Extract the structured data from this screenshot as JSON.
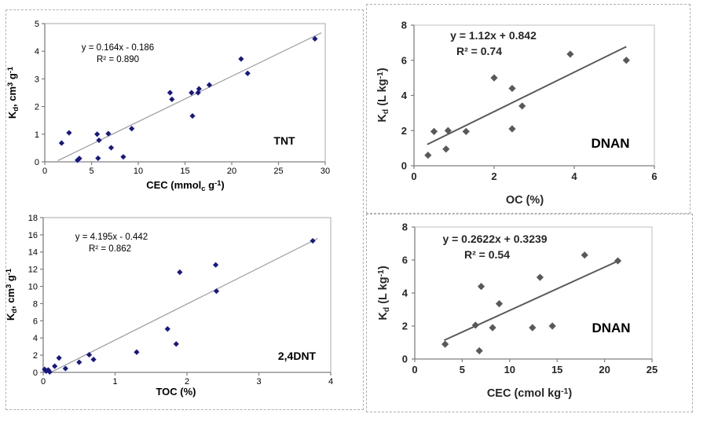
{
  "figure": {
    "background": "#ffffff",
    "panel_border_color": "#b0b0b0"
  },
  "chart_data": [
    {
      "id": "tnt_cec",
      "type": "scatter",
      "compound_label": "TNT",
      "equation": "y = 0.164x - 0.186",
      "r_squared": "R² = 0.890",
      "x_axis": {
        "title_segments": [
          {
            "t": "CEC (mmol"
          },
          {
            "t": "c",
            "sub": true
          },
          {
            "t": " g"
          },
          {
            "t": "-1",
            "sup": true
          },
          {
            "t": ")"
          }
        ],
        "min": 0,
        "max": 30,
        "ticks": [
          "0",
          "5",
          "10",
          "15",
          "20",
          "25",
          "30"
        ]
      },
      "y_axis": {
        "title_segments": [
          {
            "t": "K"
          },
          {
            "t": "d",
            "sub": true
          },
          {
            "t": ", cm"
          },
          {
            "t": "3",
            "sup": true
          },
          {
            "t": " g"
          },
          {
            "t": "-1",
            "sup": true
          }
        ],
        "min": 0,
        "max": 5,
        "ticks": [
          "0",
          "1",
          "2",
          "3",
          "4",
          "5"
        ]
      },
      "points": [
        [
          1.8,
          0.68
        ],
        [
          2.6,
          1.05
        ],
        [
          3.5,
          0.06
        ],
        [
          3.7,
          0.12
        ],
        [
          5.6,
          1.0
        ],
        [
          5.8,
          0.78
        ],
        [
          5.7,
          0.13
        ],
        [
          6.8,
          1.02
        ],
        [
          7.1,
          0.51
        ],
        [
          8.4,
          0.18
        ],
        [
          9.3,
          1.2
        ],
        [
          13.4,
          2.5
        ],
        [
          13.6,
          2.26
        ],
        [
          15.7,
          2.5
        ],
        [
          15.8,
          1.66
        ],
        [
          16.4,
          2.5
        ],
        [
          16.5,
          2.64
        ],
        [
          17.6,
          2.78
        ],
        [
          21.0,
          3.72
        ],
        [
          21.7,
          3.2
        ],
        [
          28.9,
          4.45
        ]
      ],
      "trend": {
        "slope": 0.164,
        "intercept": -0.186,
        "x_start": 1.4,
        "x_end": 29.6
      },
      "style": {
        "marker_color": "#17178a",
        "marker_half": 3.6,
        "trend_color": "#9a9a9a",
        "trend_width": 1.2,
        "frame_color": "#a8a8a8",
        "axis_color": "#808080",
        "text_color": "#000000",
        "bold_text": false
      },
      "grid": false,
      "legend": "none"
    },
    {
      "id": "dnan_oc",
      "type": "scatter",
      "compound_label": "DNAN",
      "equation": "y = 1.12x + 0.842",
      "r_squared": "R² = 0.74",
      "x_axis": {
        "title_segments": [
          {
            "t": "OC (%)"
          }
        ],
        "min": 0,
        "max": 6,
        "ticks": [
          "0",
          "2",
          "4",
          "6"
        ]
      },
      "y_axis": {
        "title_segments": [
          {
            "t": "K"
          },
          {
            "t": "d",
            "sub": true
          },
          {
            "t": " (L kg"
          },
          {
            "t": "-1",
            "sup": true
          },
          {
            "t": ")"
          }
        ],
        "min": 0,
        "max": 8,
        "ticks": [
          "0",
          "2",
          "4",
          "6",
          "8"
        ]
      },
      "points": [
        [
          0.35,
          0.6
        ],
        [
          0.5,
          1.95
        ],
        [
          0.8,
          0.95
        ],
        [
          0.85,
          2.0
        ],
        [
          1.3,
          1.95
        ],
        [
          2.0,
          5.0
        ],
        [
          2.45,
          4.4
        ],
        [
          2.45,
          2.1
        ],
        [
          2.7,
          3.4
        ],
        [
          3.9,
          6.35
        ],
        [
          5.3,
          6.0
        ]
      ],
      "trend": {
        "slope": 1.12,
        "intercept": 0.842,
        "x_start": 0.33,
        "x_end": 5.3
      },
      "style": {
        "marker_color": "#595959",
        "marker_half": 4.6,
        "trend_color": "#595959",
        "trend_width": 2,
        "frame_color": "#bfbfbf",
        "axis_color": "#7f7f7f",
        "text_color": "#262626",
        "bold_text": true
      },
      "grid": false,
      "legend": "none"
    },
    {
      "id": "dnt_toc",
      "type": "scatter",
      "compound_label": "2,4DNT",
      "equation": "y = 4.195x - 0.442",
      "r_squared": "R² = 0.862",
      "x_axis": {
        "title_segments": [
          {
            "t": "TOC (%)"
          }
        ],
        "min": 0,
        "max": 4,
        "ticks": [
          "0",
          "1",
          "2",
          "3",
          "4"
        ]
      },
      "y_axis": {
        "title_segments": [
          {
            "t": "K"
          },
          {
            "t": "d",
            "sub": true
          },
          {
            "t": ", cm"
          },
          {
            "t": "3",
            "sup": true
          },
          {
            "t": " g"
          },
          {
            "t": "-1",
            "sup": true
          }
        ],
        "min": 0,
        "max": 18,
        "ticks": [
          "0",
          "2",
          "4",
          "6",
          "8",
          "10",
          "12",
          "14",
          "16",
          "18"
        ]
      },
      "points": [
        [
          0.02,
          0.35
        ],
        [
          0.04,
          0.15
        ],
        [
          0.07,
          0.28
        ],
        [
          0.09,
          0.05
        ],
        [
          0.16,
          0.72
        ],
        [
          0.22,
          1.68
        ],
        [
          0.31,
          0.45
        ],
        [
          0.5,
          1.18
        ],
        [
          0.64,
          2.05
        ],
        [
          0.7,
          1.5
        ],
        [
          1.3,
          2.35
        ],
        [
          1.73,
          5.05
        ],
        [
          1.85,
          3.3
        ],
        [
          1.9,
          11.65
        ],
        [
          2.4,
          12.5
        ],
        [
          2.41,
          9.45
        ],
        [
          3.75,
          15.3
        ]
      ],
      "trend": {
        "slope": 4.195,
        "intercept": -0.442,
        "x_start": 0.11,
        "x_end": 3.82
      },
      "style": {
        "marker_color": "#17178a",
        "marker_half": 3.6,
        "trend_color": "#9a9a9a",
        "trend_width": 1.2,
        "frame_color": "#a8a8a8",
        "axis_color": "#808080",
        "text_color": "#000000",
        "bold_text": false
      },
      "grid": false,
      "legend": "none"
    },
    {
      "id": "dnan_cec",
      "type": "scatter",
      "compound_label": "DNAN",
      "equation": "y = 0.2622x + 0.3239",
      "r_squared": "R² = 0.54",
      "x_axis": {
        "title_segments": [
          {
            "t": "CEC (cmol kg"
          },
          {
            "t": "-1",
            "sup": true
          },
          {
            "t": ")"
          }
        ],
        "min": 0,
        "max": 25,
        "ticks": [
          "0",
          "5",
          "10",
          "15",
          "20",
          "25"
        ]
      },
      "y_axis": {
        "title_segments": [
          {
            "t": "K"
          },
          {
            "t": "d",
            "sub": true
          },
          {
            "t": " (L kg"
          },
          {
            "t": "-1",
            "sup": true
          },
          {
            "t": ")"
          }
        ],
        "min": 0,
        "max": 8,
        "ticks": [
          "0",
          "2",
          "4",
          "6",
          "8"
        ]
      },
      "points": [
        [
          3.2,
          0.9
        ],
        [
          6.4,
          2.05
        ],
        [
          6.8,
          0.5
        ],
        [
          7.0,
          4.4
        ],
        [
          8.2,
          1.9
        ],
        [
          8.9,
          3.35
        ],
        [
          12.4,
          1.9
        ],
        [
          13.2,
          4.95
        ],
        [
          14.5,
          2.0
        ],
        [
          17.9,
          6.3
        ],
        [
          21.4,
          5.95
        ]
      ],
      "trend": {
        "slope": 0.2622,
        "intercept": 0.3239,
        "x_start": 3.1,
        "x_end": 21.5
      },
      "style": {
        "marker_color": "#595959",
        "marker_half": 4.6,
        "trend_color": "#595959",
        "trend_width": 2,
        "frame_color": "#bfbfbf",
        "axis_color": "#7f7f7f",
        "text_color": "#262626",
        "bold_text": true
      },
      "grid": false,
      "legend": "none"
    }
  ]
}
